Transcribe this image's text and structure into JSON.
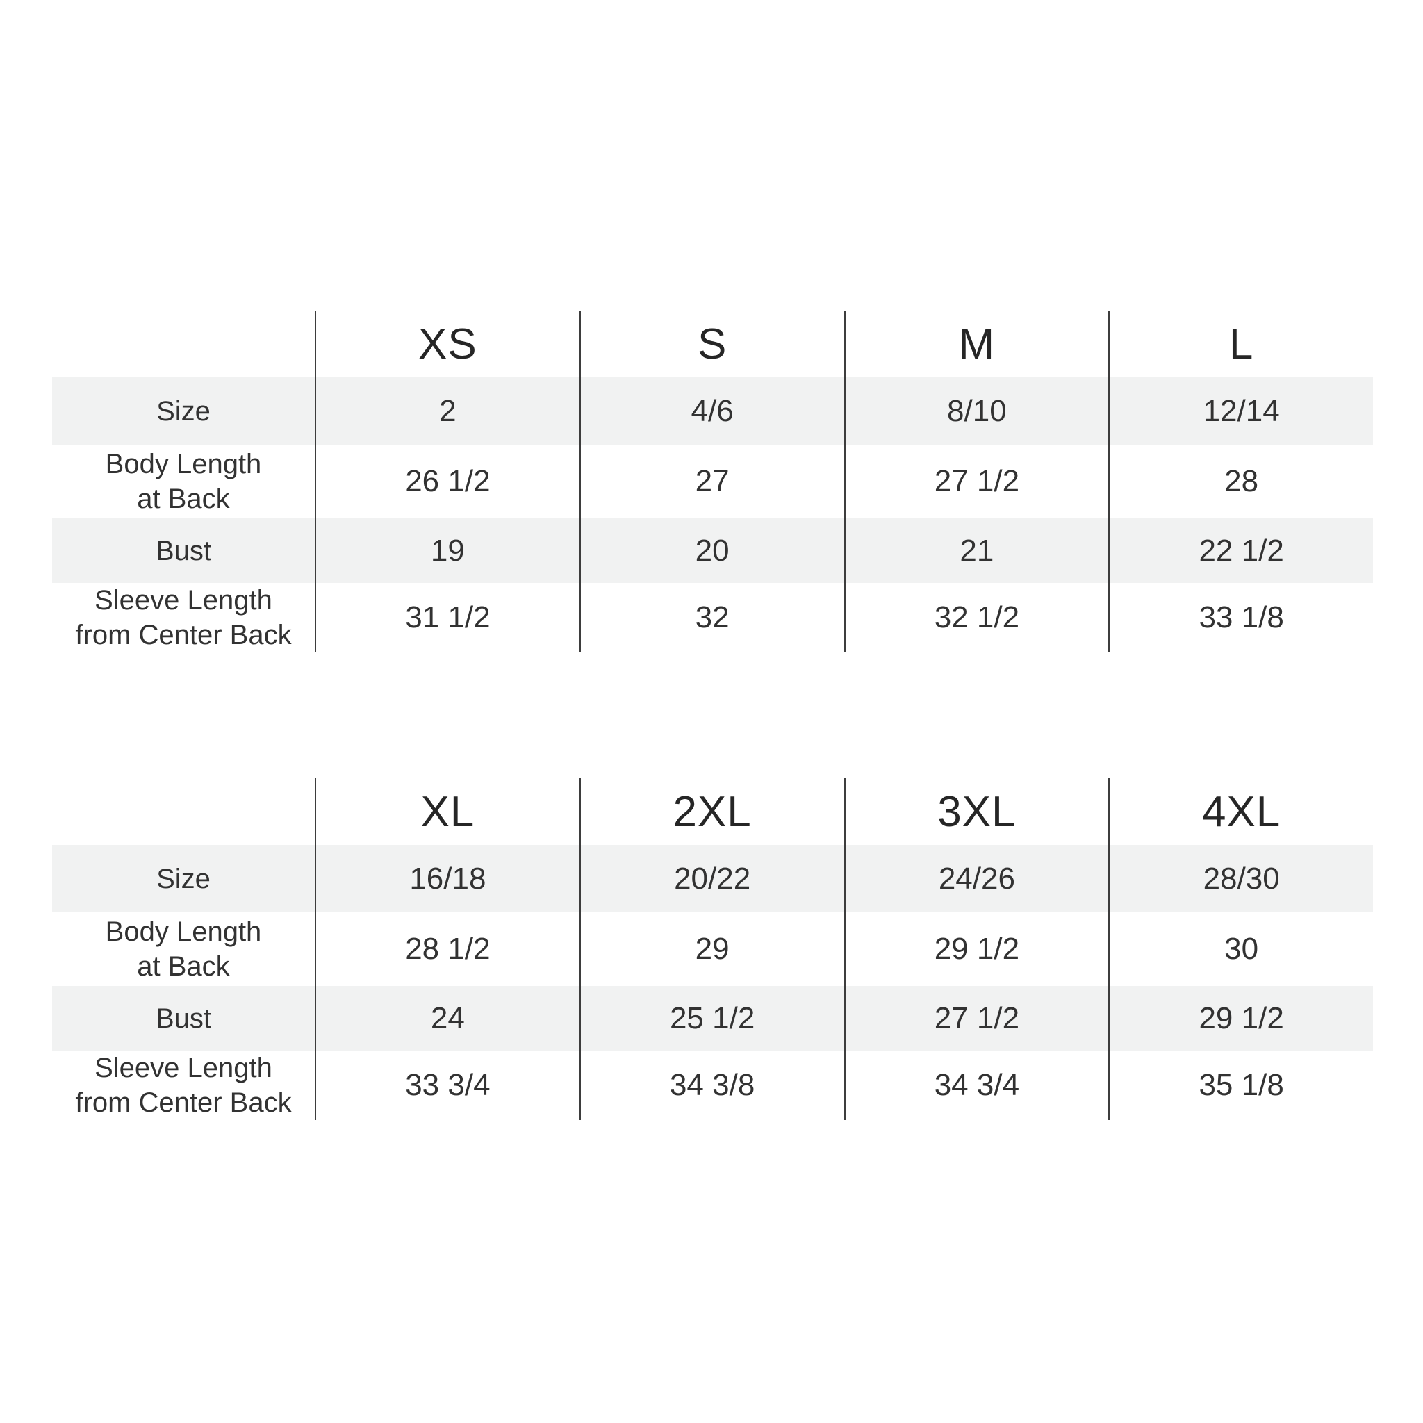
{
  "colors": {
    "background": "#ffffff",
    "stripe": "#f1f2f2",
    "divider": "#3d3d3d",
    "text": "#323232"
  },
  "chart_data": [
    {
      "type": "table",
      "size_group": "XS-L",
      "columns": [
        "XS",
        "S",
        "M",
        "L"
      ],
      "rows": [
        {
          "label": "Size",
          "values": [
            "2",
            "4/6",
            "8/10",
            "12/14"
          ]
        },
        {
          "label": "Body Length\nat Back",
          "values": [
            "26 1/2",
            "27",
            "27 1/2",
            "28"
          ]
        },
        {
          "label": "Bust",
          "values": [
            "19",
            "20",
            "21",
            "22 1/2"
          ]
        },
        {
          "label": "Sleeve Length\nfrom Center Back",
          "values": [
            "31 1/2",
            "32",
            "32 1/2",
            "33 1/8"
          ]
        }
      ]
    },
    {
      "type": "table",
      "size_group": "XL-4XL",
      "columns": [
        "XL",
        "2XL",
        "3XL",
        "4XL"
      ],
      "rows": [
        {
          "label": "Size",
          "values": [
            "16/18",
            "20/22",
            "24/26",
            "28/30"
          ]
        },
        {
          "label": "Body Length\nat Back",
          "values": [
            "28 1/2",
            "29",
            "29 1/2",
            "30"
          ]
        },
        {
          "label": "Bust",
          "values": [
            "24",
            "25 1/2",
            "27 1/2",
            "29 1/2"
          ]
        },
        {
          "label": "Sleeve Length\nfrom Center Back",
          "values": [
            "33 3/4",
            "34 3/8",
            "34 3/4",
            "35 1/8"
          ]
        }
      ]
    }
  ]
}
